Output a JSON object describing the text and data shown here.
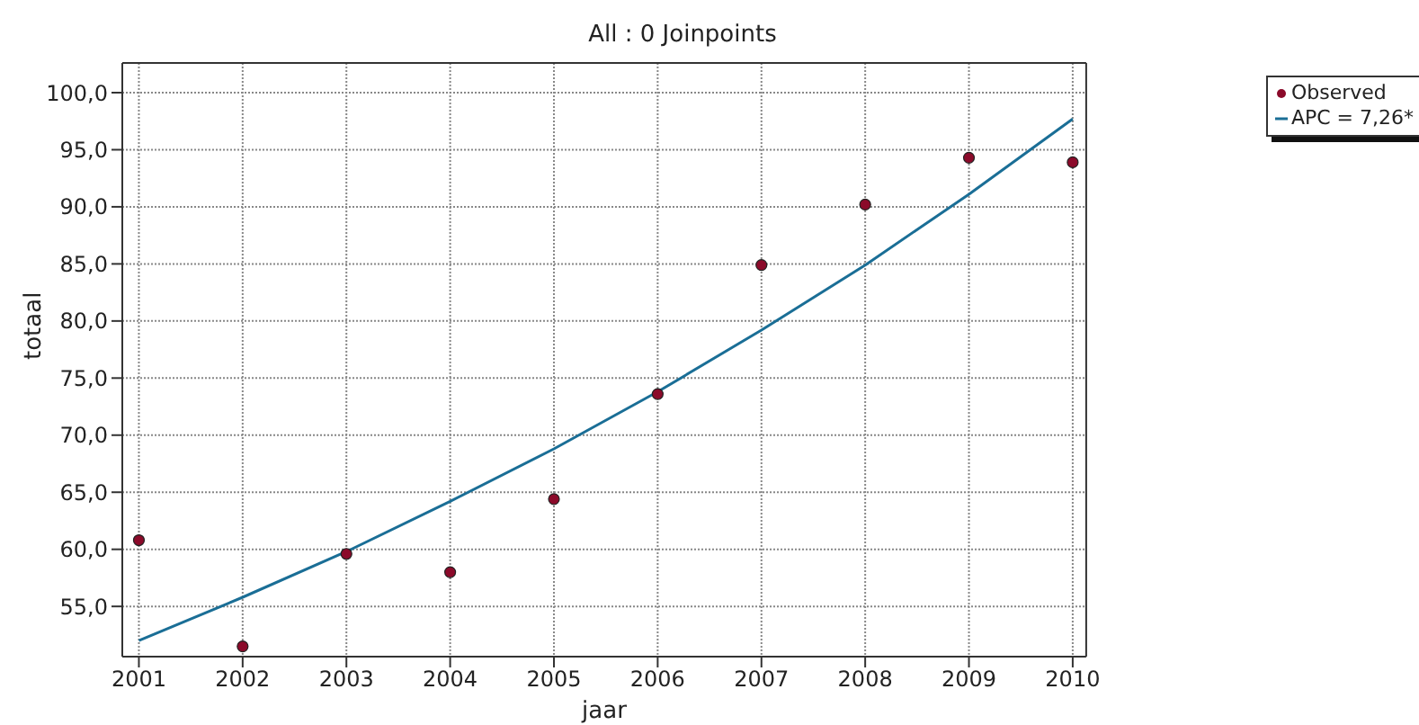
{
  "chart_data": {
    "type": "scatter",
    "title": "All : 0 Joinpoints",
    "xlabel": "jaar",
    "ylabel": "totaal",
    "x": [
      2001,
      2002,
      2003,
      2004,
      2005,
      2006,
      2007,
      2008,
      2009,
      2010
    ],
    "series": [
      {
        "name": "Observed",
        "color": "#8b0a2a",
        "marker": "circle",
        "values": [
          60.8,
          51.5,
          59.6,
          58.0,
          64.4,
          73.6,
          84.9,
          90.2,
          94.3,
          93.9
        ]
      },
      {
        "name": "APC = 7,26*",
        "type": "line",
        "color": "#1a6e96",
        "marker": "none",
        "line_style": "solid",
        "values": [
          52.0,
          55.8,
          59.8,
          64.2,
          68.8,
          73.8,
          79.2,
          84.9,
          91.1,
          97.7
        ]
      }
    ],
    "xlim": [
      2000.84,
      2010.13
    ],
    "xticks": [
      2001,
      2002,
      2003,
      2004,
      2005,
      2006,
      2007,
      2008,
      2009,
      2010
    ],
    "ylim": [
      50.6,
      102.6
    ],
    "yticks": [
      {
        "value": 55,
        "label": "55,0"
      },
      {
        "value": 60,
        "label": "60,0"
      },
      {
        "value": 65,
        "label": "65,0"
      },
      {
        "value": 70,
        "label": "70,0"
      },
      {
        "value": 75,
        "label": "75,0"
      },
      {
        "value": 80,
        "label": "80,0"
      },
      {
        "value": 85,
        "label": "85,0"
      },
      {
        "value": 90,
        "label": "90,0"
      },
      {
        "value": 95,
        "label": "95,0"
      },
      {
        "value": 100,
        "label": "100,0"
      }
    ],
    "grid": true,
    "legend": "top right"
  }
}
